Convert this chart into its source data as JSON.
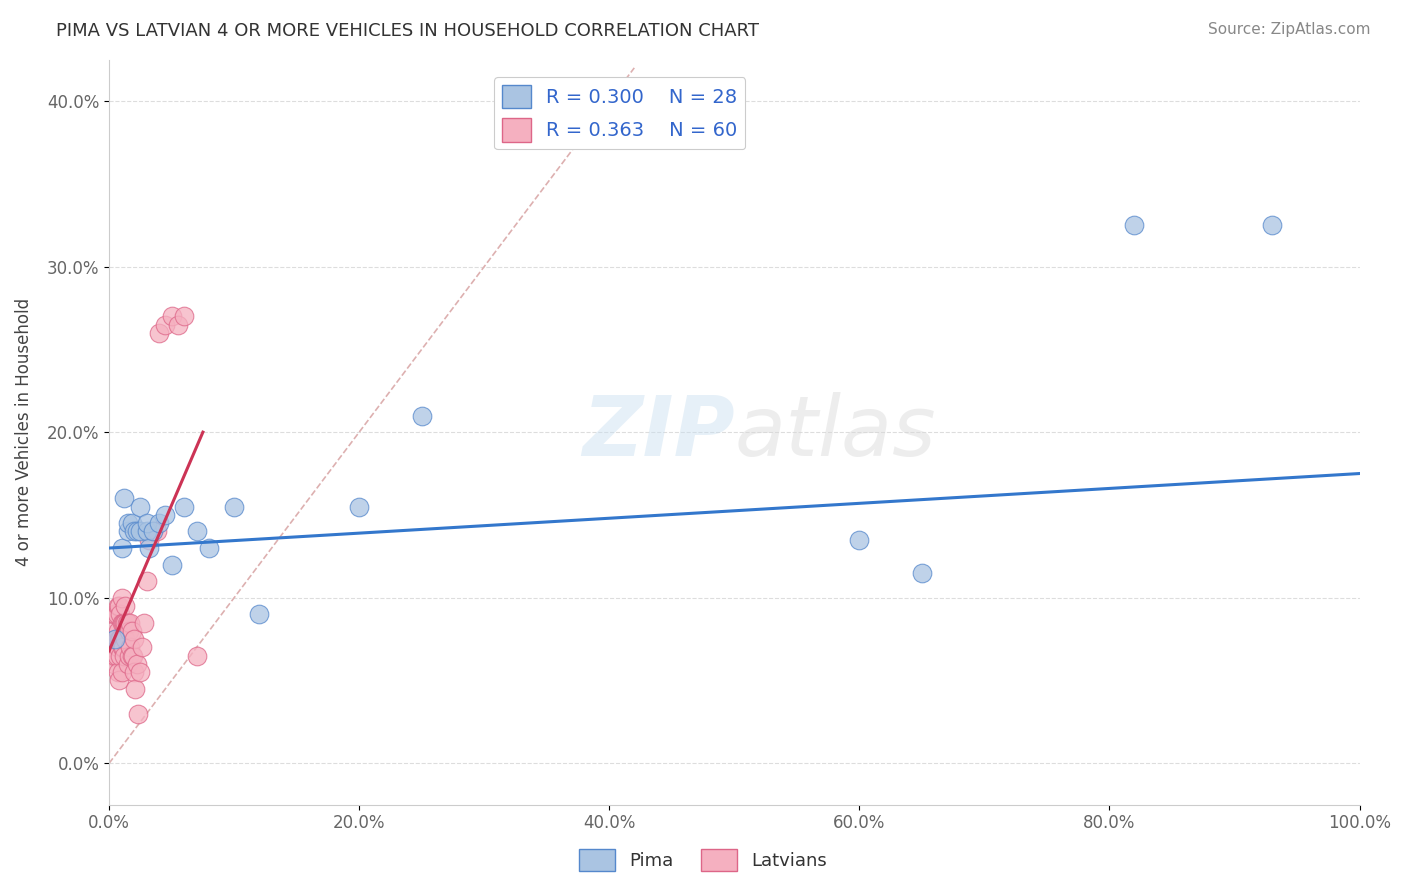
{
  "title": "PIMA VS LATVIAN 4 OR MORE VEHICLES IN HOUSEHOLD CORRELATION CHART",
  "source": "Source: ZipAtlas.com",
  "ylabel": "4 or more Vehicles in Household",
  "xlabel": "",
  "xlim": [
    0.0,
    1.0
  ],
  "ylim": [
    -0.025,
    0.425
  ],
  "x_ticks": [
    0.0,
    0.2,
    0.4,
    0.6,
    0.8,
    1.0
  ],
  "x_tick_labels": [
    "0.0%",
    "20.0%",
    "40.0%",
    "60.0%",
    "80.0%",
    "100.0%"
  ],
  "y_ticks": [
    0.0,
    0.1,
    0.2,
    0.3,
    0.4
  ],
  "y_tick_labels": [
    "0.0%",
    "10.0%",
    "20.0%",
    "30.0%",
    "40.0%"
  ],
  "pima_R": "0.300",
  "pima_N": "28",
  "latvian_R": "0.363",
  "latvian_N": "60",
  "pima_color": "#aac4e2",
  "latvian_color": "#f5b0c0",
  "pima_edge": "#5588cc",
  "latvian_edge": "#dd6688",
  "trend_pima_color": "#3377cc",
  "trend_latvian_color": "#cc3355",
  "diagonal_color": "#ddb0b0",
  "watermark_zip": "ZIP",
  "watermark_atlas": "atlas",
  "background_color": "#ffffff",
  "grid_color": "#dddddd",
  "pima_x": [
    0.005,
    0.01,
    0.012,
    0.015,
    0.015,
    0.018,
    0.02,
    0.022,
    0.025,
    0.025,
    0.03,
    0.03,
    0.032,
    0.035,
    0.04,
    0.045,
    0.05,
    0.06,
    0.07,
    0.08,
    0.1,
    0.12,
    0.2,
    0.25,
    0.6,
    0.65,
    0.82,
    0.93
  ],
  "pima_y": [
    0.075,
    0.13,
    0.16,
    0.14,
    0.145,
    0.145,
    0.14,
    0.14,
    0.14,
    0.155,
    0.14,
    0.145,
    0.13,
    0.14,
    0.145,
    0.15,
    0.12,
    0.155,
    0.14,
    0.13,
    0.155,
    0.09,
    0.155,
    0.21,
    0.135,
    0.115,
    0.325,
    0.325
  ],
  "latvian_x": [
    0.002,
    0.003,
    0.003,
    0.004,
    0.004,
    0.005,
    0.005,
    0.005,
    0.006,
    0.006,
    0.006,
    0.007,
    0.007,
    0.007,
    0.007,
    0.008,
    0.008,
    0.008,
    0.009,
    0.009,
    0.009,
    0.01,
    0.01,
    0.01,
    0.01,
    0.011,
    0.011,
    0.012,
    0.012,
    0.013,
    0.013,
    0.013,
    0.014,
    0.015,
    0.015,
    0.016,
    0.016,
    0.017,
    0.017,
    0.018,
    0.018,
    0.019,
    0.02,
    0.02,
    0.021,
    0.022,
    0.023,
    0.025,
    0.026,
    0.028,
    0.03,
    0.032,
    0.035,
    0.038,
    0.04,
    0.045,
    0.05,
    0.055,
    0.06,
    0.07
  ],
  "latvian_y": [
    0.07,
    0.065,
    0.08,
    0.06,
    0.09,
    0.065,
    0.075,
    0.09,
    0.065,
    0.075,
    0.09,
    0.055,
    0.07,
    0.08,
    0.095,
    0.05,
    0.075,
    0.095,
    0.065,
    0.075,
    0.09,
    0.055,
    0.07,
    0.085,
    0.1,
    0.07,
    0.085,
    0.065,
    0.085,
    0.075,
    0.085,
    0.095,
    0.085,
    0.06,
    0.085,
    0.065,
    0.08,
    0.07,
    0.085,
    0.065,
    0.08,
    0.065,
    0.055,
    0.075,
    0.045,
    0.06,
    0.03,
    0.055,
    0.07,
    0.085,
    0.11,
    0.135,
    0.14,
    0.14,
    0.26,
    0.265,
    0.27,
    0.265,
    0.27,
    0.065
  ],
  "legend_label_pima": "Pima",
  "legend_label_latvian": "Latvians",
  "trend_pima_x0": 0.0,
  "trend_pima_y0": 0.13,
  "trend_pima_x1": 1.0,
  "trend_pima_y1": 0.175,
  "trend_latvian_x0": 0.0,
  "trend_latvian_y0": 0.068,
  "trend_latvian_x1": 0.075,
  "trend_latvian_y1": 0.2
}
